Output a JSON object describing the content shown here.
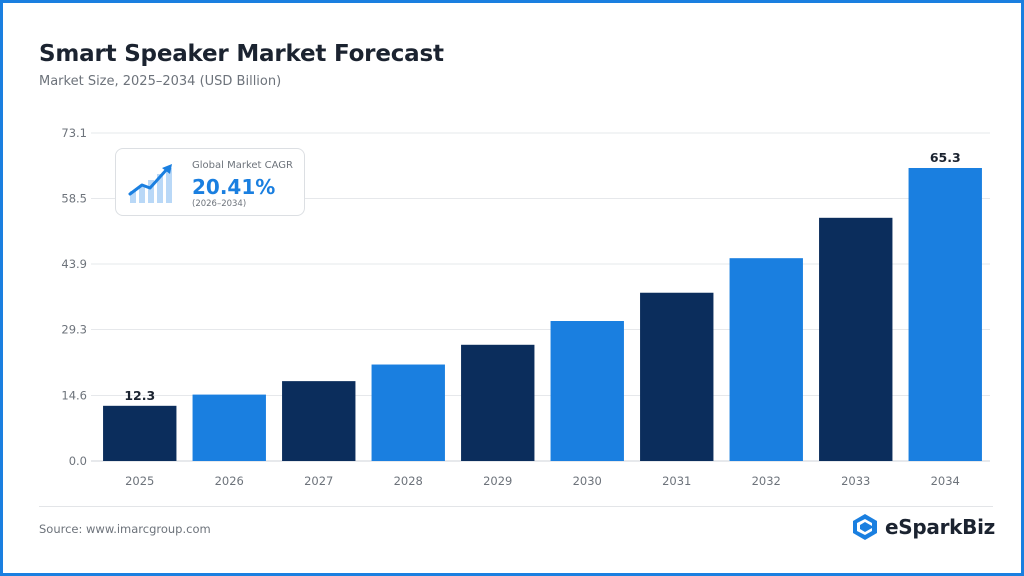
{
  "header": {
    "title": "Smart Speaker Market Forecast",
    "subtitle": "Market Size, 2025–2034 (USD Billion)"
  },
  "cagr": {
    "label": "Global Market CAGR",
    "value": "20.41%",
    "period": "(2026–2034)",
    "icon": "growth-chart-icon"
  },
  "footer": {
    "source": "Source: www.imarcgroup.com",
    "logo_text": "eSparkBiz",
    "logo_icon": "esparkbiz-logo-icon"
  },
  "colors": {
    "dark": "#0b2d5c",
    "light": "#1a7fe0",
    "border": "#1a7fe0",
    "grid": "#e6e8eb",
    "text": "#1b2330",
    "muted": "#6d737b"
  },
  "chart_data": {
    "type": "bar",
    "categories": [
      "2025",
      "2026",
      "2027",
      "2028",
      "2029",
      "2030",
      "2031",
      "2032",
      "2033",
      "2034"
    ],
    "values": [
      12.3,
      14.8,
      17.8,
      21.5,
      25.9,
      31.2,
      37.5,
      45.2,
      54.2,
      65.3
    ],
    "bar_colors": [
      "#0b2d5c",
      "#1a7fe0",
      "#0b2d5c",
      "#1a7fe0",
      "#0b2d5c",
      "#1a7fe0",
      "#0b2d5c",
      "#1a7fe0",
      "#0b2d5c",
      "#1a7fe0"
    ],
    "data_labels": [
      {
        "index": 0,
        "text": "12.3"
      },
      {
        "index": 9,
        "text": "65.3"
      }
    ],
    "yticks": [
      "0.0",
      "14.6",
      "29.3",
      "43.9",
      "58.5",
      "73.1"
    ],
    "ylim": [
      0,
      73.1
    ],
    "grid": true,
    "legend": false
  }
}
